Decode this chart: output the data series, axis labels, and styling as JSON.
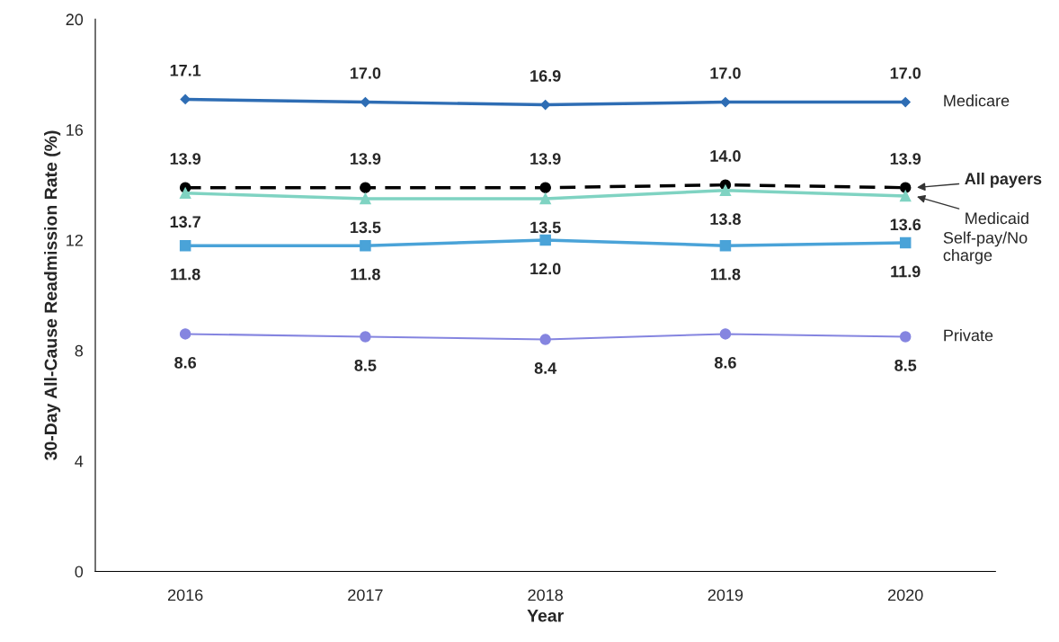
{
  "chart_data": {
    "type": "line",
    "xlabel": "Year",
    "ylabel": "30-Day All-Cause Readmission Rate (%)",
    "categories": [
      "2016",
      "2017",
      "2018",
      "2019",
      "2020"
    ],
    "series": [
      {
        "name": "Medicare",
        "color": "#2e6db4",
        "marker": "diamond",
        "line_style": "solid",
        "values": [
          17.1,
          17.0,
          16.9,
          17.0,
          17.0
        ],
        "value_labels": [
          "17.1",
          "17.0",
          "16.9",
          "17.0",
          "17.0"
        ]
      },
      {
        "name": "All payers",
        "color": "#000000",
        "marker": "circle",
        "line_style": "dashed",
        "values": [
          13.9,
          13.9,
          13.9,
          14.0,
          13.9
        ],
        "value_labels": [
          "13.9",
          "13.9",
          "13.9",
          "14.0",
          "13.9"
        ]
      },
      {
        "name": "Medicaid",
        "color": "#7fd3c2",
        "marker": "triangle",
        "line_style": "solid",
        "values": [
          13.7,
          13.5,
          13.5,
          13.8,
          13.6
        ],
        "value_labels": [
          "13.7",
          "13.5",
          "13.5",
          "13.8",
          "13.6"
        ]
      },
      {
        "name": "Self-pay/No\ncharge",
        "color": "#4aa3d8",
        "marker": "square",
        "line_style": "solid",
        "values": [
          11.8,
          11.8,
          12.0,
          11.8,
          11.9
        ],
        "value_labels": [
          "11.8",
          "11.8",
          "12.0",
          "11.8",
          "11.9"
        ]
      },
      {
        "name": "Private",
        "color": "#8585e0",
        "marker": "circle",
        "line_style": "solid",
        "values": [
          8.6,
          8.5,
          8.4,
          8.6,
          8.5
        ],
        "value_labels": [
          "8.6",
          "8.5",
          "8.4",
          "8.6",
          "8.5"
        ]
      }
    ],
    "ylim": [
      0,
      20
    ],
    "yticks": [
      0,
      4,
      8,
      12,
      16,
      20
    ],
    "grid": false,
    "legend": "right"
  }
}
